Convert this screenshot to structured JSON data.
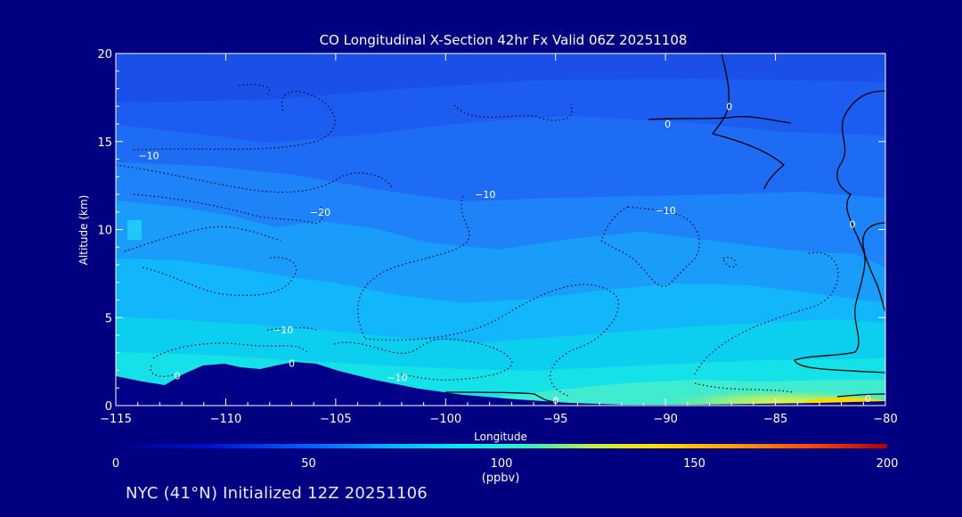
{
  "chart_data": {
    "type": "heatmap",
    "title": "CO Longitudinal X-Section 42hr  Fx Valid 06Z 20251108",
    "xlabel": "Longitude",
    "ylabel": "Altitude (km)",
    "xlim": [
      -115,
      -80
    ],
    "ylim": [
      0,
      20
    ],
    "x_ticks": [
      -115,
      -110,
      -105,
      -100,
      -95,
      -90,
      -85,
      -80
    ],
    "x_tick_labels": [
      "−115",
      "−110",
      "−105",
      "−100",
      "−95",
      "−90",
      "−85",
      "−80"
    ],
    "y_ticks": [
      0,
      5,
      10,
      15,
      20
    ],
    "y_tick_labels": [
      "0",
      "5",
      "10",
      "15",
      "20"
    ],
    "field_units": "ppbv",
    "colorbar": {
      "min": 0,
      "max": 200,
      "ticks": [
        0,
        50,
        100,
        150,
        200
      ],
      "tick_labels": [
        "0",
        "50",
        "100",
        "150",
        "200"
      ],
      "label": "(ppbv)"
    },
    "approx_field_profile": [
      {
        "altitude_km": 19,
        "co_ppbv": 25
      },
      {
        "altitude_km": 16,
        "co_ppbv": 32
      },
      {
        "altitude_km": 13,
        "co_ppbv": 40
      },
      {
        "altitude_km": 10,
        "co_ppbv": 55
      },
      {
        "altitude_km": 7,
        "co_ppbv": 65
      },
      {
        "altitude_km": 4,
        "co_ppbv": 75
      },
      {
        "altitude_km": 2,
        "co_ppbv": 85
      },
      {
        "altitude_km": 0.5,
        "co_ppbv": 120
      }
    ],
    "contour_labels": [
      {
        "text": "−10",
        "lon": -113.5,
        "alt": 14.2
      },
      {
        "text": "−20",
        "lon": -105.7,
        "alt": 11.0
      },
      {
        "text": "−10",
        "lon": -98.2,
        "alt": 12.0
      },
      {
        "text": "−10",
        "lon": -90.0,
        "alt": 11.1
      },
      {
        "text": "0",
        "lon": -89.9,
        "alt": 16.0
      },
      {
        "text": "0",
        "lon": -87.1,
        "alt": 17.0
      },
      {
        "text": "0",
        "lon": -81.5,
        "alt": 10.3
      },
      {
        "text": "−10",
        "lon": -107.4,
        "alt": 4.3
      },
      {
        "text": "0",
        "lon": -112.2,
        "alt": 1.7
      },
      {
        "text": "0",
        "lon": -107.0,
        "alt": 2.4
      },
      {
        "text": "−10",
        "lon": -102.2,
        "alt": 1.6
      },
      {
        "text": "0",
        "lon": -95.0,
        "alt": 0.3
      },
      {
        "text": "0",
        "lon": -80.8,
        "alt": 0.4
      }
    ]
  },
  "footer": {
    "caption": "NYC (41°N) Initialized 12Z 20251106"
  }
}
